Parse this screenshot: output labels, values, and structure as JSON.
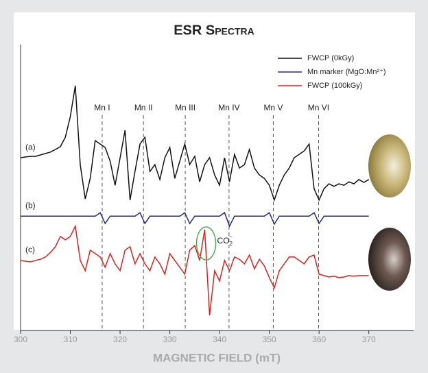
{
  "chart_data": {
    "type": "line",
    "title": "ESR Spectra",
    "x_label": "MAGNETIC FIELD (mT)",
    "xlim": [
      300,
      379
    ],
    "xticks": [
      300,
      310,
      320,
      330,
      340,
      350,
      360,
      370
    ],
    "ylim": [
      0,
      100
    ],
    "x": [
      300,
      301,
      302,
      303,
      304,
      305,
      306,
      307,
      308,
      309,
      310,
      311,
      312,
      313,
      314,
      315,
      316,
      317,
      318,
      319,
      320,
      321,
      322,
      323,
      324,
      325,
      326,
      327,
      328,
      329,
      330,
      331,
      332,
      333,
      334,
      335,
      336,
      337,
      338,
      339,
      340,
      341,
      342,
      343,
      344,
      345,
      346,
      347,
      348,
      349,
      350,
      351,
      352,
      353,
      354,
      355,
      356,
      357,
      358,
      359,
      360,
      361,
      362,
      363,
      364,
      365,
      366,
      367,
      368,
      369,
      370
    ],
    "series": [
      {
        "name": "FWCP (0kGy)",
        "label": "(a)",
        "color": "#111111",
        "values": [
          60.4,
          60.7,
          60.9,
          60.9,
          61.4,
          61.9,
          62.4,
          63.3,
          64.3,
          67.6,
          74.8,
          85.6,
          58.0,
          46.0,
          53.2,
          66.4,
          65.2,
          64.0,
          59.2,
          50.8,
          60.4,
          70.0,
          45.6,
          55.6,
          65.2,
          67.6,
          55.6,
          58.0,
          52.8,
          60.4,
          64.0,
          53.2,
          59.2,
          65.2,
          58.0,
          60.9,
          52.0,
          58.0,
          60.4,
          54.4,
          50.8,
          60.4,
          52.0,
          61.6,
          56.8,
          58.0,
          63.3,
          56.8,
          54.4,
          53.2,
          50.8,
          45.6,
          50.8,
          54.4,
          56.8,
          60.4,
          61.6,
          62.8,
          65.2,
          49.6,
          45.6,
          49.6,
          51.3,
          50.4,
          51.3,
          50.8,
          52.0,
          51.3,
          52.8,
          51.8,
          52.8
        ]
      },
      {
        "name": "Mn marker (MgO:Mn²⁺)",
        "label": "(b)",
        "color": "#1f2a8c",
        "values": [
          40,
          40,
          40,
          40,
          40,
          40,
          40,
          40,
          40,
          40,
          40,
          40,
          40,
          40,
          40,
          40,
          41.2,
          37.4,
          40,
          40,
          40,
          40,
          40,
          40,
          41.2,
          37.4,
          40,
          40,
          40,
          40,
          40,
          40,
          40,
          41.2,
          37.4,
          40,
          40,
          40,
          40,
          40,
          40,
          41.2,
          36.5,
          40,
          40,
          40,
          40,
          40,
          40,
          40,
          41.2,
          37.2,
          40,
          40,
          40,
          40,
          40,
          40,
          40,
          41.2,
          37.4,
          40,
          40,
          40,
          40,
          40,
          40,
          40,
          40,
          40,
          40
        ]
      },
      {
        "name": "FWCP (100kGy)",
        "label": "(c)",
        "color": "#e0201c",
        "values": [
          24.5,
          24.2,
          24.0,
          24.5,
          24.9,
          25.7,
          27.3,
          29.3,
          32.9,
          31.7,
          32.9,
          36.5,
          24.5,
          20.9,
          28.1,
          26.9,
          25.7,
          22.1,
          26.9,
          23.3,
          20.9,
          28.1,
          29.3,
          23.3,
          26.9,
          23.3,
          20.9,
          25.7,
          23.3,
          19.7,
          26.9,
          24.5,
          22.1,
          19.7,
          28.1,
          29.7,
          24.5,
          35.3,
          5.3,
          20.9,
          17.3,
          24.5,
          20.9,
          25.7,
          24.9,
          23.3,
          26.4,
          21.6,
          24.9,
          22.6,
          18.5,
          14.9,
          20.9,
          23.3,
          25.7,
          25.7,
          24.5,
          23.3,
          25.7,
          26.4,
          19.7,
          19.2,
          18.7,
          19.0,
          18.5,
          18.7,
          19.2,
          19.0,
          19.2,
          19.2,
          19.2
        ]
      }
    ],
    "markers": [
      {
        "label": "Mn I",
        "x": 316.4
      },
      {
        "label": "Mn II",
        "x": 324.7
      },
      {
        "label": "Mn III",
        "x": 333.1
      },
      {
        "label": "Mn IV",
        "x": 341.9
      },
      {
        "label": "Mn V",
        "x": 350.8
      },
      {
        "label": "Mn VI",
        "x": 359.9
      }
    ],
    "highlight": {
      "main": "CO",
      "sub": "2",
      "sup": "−",
      "x": 337.3
    },
    "legend": "upper right"
  }
}
